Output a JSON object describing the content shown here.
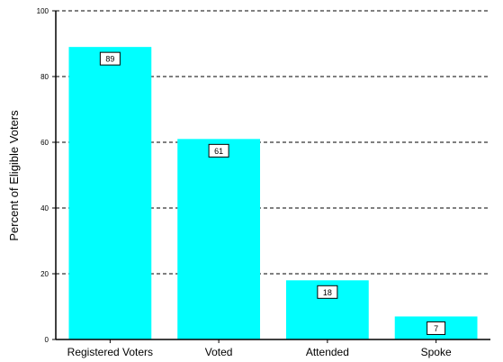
{
  "chart_data": {
    "type": "bar",
    "categories": [
      "Registered Voters",
      "Voted",
      "Attended",
      "Spoke"
    ],
    "values": [
      89,
      61,
      18,
      7
    ],
    "data_labels": [
      "89",
      "61",
      "18",
      "7"
    ],
    "ylabel": "Percent of Eligible Voters",
    "xlabel": "",
    "ylim": [
      0,
      100
    ],
    "yticks": [
      "0",
      "20",
      "40",
      "60",
      "80",
      "100"
    ],
    "grid": "horizontal dashed",
    "bar_color": "#00ffff",
    "grid_color": "#000000"
  }
}
